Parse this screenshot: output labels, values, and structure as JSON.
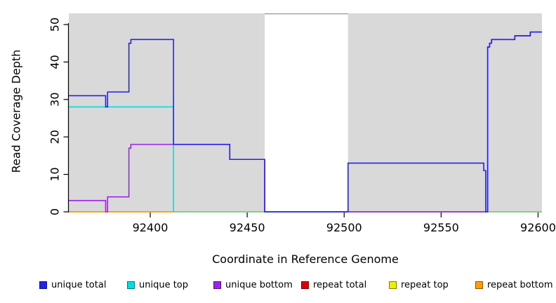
{
  "chart_data": {
    "type": "line",
    "subtype": "step-coverage",
    "title": "",
    "xlabel": "Coordinate in Reference Genome",
    "ylabel": "Read Coverage Depth",
    "xlim": [
      92358,
      92602
    ],
    "ylim": [
      0,
      53
    ],
    "x_ticks": [
      92400,
      92450,
      92500,
      92550,
      92600
    ],
    "y_ticks": [
      0,
      10,
      20,
      30,
      40,
      50
    ],
    "grid": false,
    "legend_position": "bottom",
    "plot_bg": "#FFFFFF",
    "region_fill": "#D9D9D9",
    "coverage_regions": [
      {
        "x1": 92358,
        "x2": 92459
      },
      {
        "x1": 92502,
        "x2": 92602
      }
    ],
    "uncovered_gap": {
      "x1": 92459,
      "x2": 92502,
      "top_line_color": "#9E9E9E"
    },
    "series": [
      {
        "name": "unique total",
        "color": "#2222EE",
        "points": [
          [
            92358,
            31
          ],
          [
            92377,
            31
          ],
          [
            92377,
            28
          ],
          [
            92378,
            28
          ],
          [
            92378,
            32
          ],
          [
            92389,
            32
          ],
          [
            92389,
            45
          ],
          [
            92390,
            45
          ],
          [
            92390,
            46
          ],
          [
            92412,
            46
          ],
          [
            92412,
            18
          ],
          [
            92441,
            18
          ],
          [
            92441,
            14
          ],
          [
            92459,
            14
          ],
          [
            92459,
            0
          ],
          [
            92502,
            0
          ],
          [
            92502,
            13
          ],
          [
            92572,
            13
          ],
          [
            92572,
            11
          ],
          [
            92573,
            11
          ],
          [
            92573,
            0
          ],
          [
            92574,
            0
          ],
          [
            92574,
            44
          ],
          [
            92575,
            44
          ],
          [
            92575,
            45
          ],
          [
            92576,
            45
          ],
          [
            92576,
            46
          ],
          [
            92588,
            46
          ],
          [
            92588,
            47
          ],
          [
            92596,
            47
          ],
          [
            92596,
            48
          ],
          [
            92602,
            48
          ]
        ]
      },
      {
        "name": "unique top",
        "color": "#00DDE0",
        "points": [
          [
            92358,
            28
          ],
          [
            92412,
            28
          ],
          [
            92412,
            0
          ],
          [
            92602,
            0
          ]
        ]
      },
      {
        "name": "unique bottom",
        "color": "#A020F0",
        "points": [
          [
            92358,
            3
          ],
          [
            92377,
            3
          ],
          [
            92377,
            0
          ],
          [
            92378,
            0
          ],
          [
            92378,
            4
          ],
          [
            92389,
            4
          ],
          [
            92389,
            17
          ],
          [
            92390,
            17
          ],
          [
            92390,
            18
          ],
          [
            92441,
            18
          ],
          [
            92441,
            14
          ],
          [
            92459,
            14
          ],
          [
            92459,
            0
          ],
          [
            92574,
            0
          ],
          [
            92574,
            44
          ],
          [
            92575,
            44
          ],
          [
            92575,
            45
          ],
          [
            92576,
            45
          ],
          [
            92576,
            46
          ],
          [
            92588,
            46
          ],
          [
            92588,
            47
          ],
          [
            92596,
            47
          ],
          [
            92596,
            48
          ],
          [
            92602,
            48
          ]
        ]
      },
      {
        "name": "repeat total",
        "color": "#DD0000",
        "points": [
          [
            92358,
            0
          ],
          [
            92602,
            0
          ]
        ]
      },
      {
        "name": "repeat top",
        "color": "#EEEE00",
        "points": [
          [
            92358,
            0
          ],
          [
            92602,
            0
          ]
        ]
      },
      {
        "name": "repeat bottom",
        "color": "#FF9F00",
        "points": [
          [
            92358,
            0
          ],
          [
            92602,
            0
          ]
        ]
      }
    ],
    "draw_order": {
      "below_overlays": [
        3,
        4,
        5,
        1
      ],
      "above_overlays": [
        2,
        0
      ]
    },
    "zero_line_blend_segments": [
      {
        "x1": 92412,
        "x2": 92459,
        "color": "#8FCD8F"
      },
      {
        "x1": 92502,
        "x2": 92572,
        "color": "#C96A87"
      },
      {
        "x1": 92574,
        "x2": 92602,
        "color": "#8FCD8F"
      }
    ],
    "legend": [
      {
        "label": "unique total",
        "color": "#2222EE"
      },
      {
        "label": "unique top",
        "color": "#00DDE0"
      },
      {
        "label": "unique bottom",
        "color": "#A020F0"
      },
      {
        "label": "repeat total",
        "color": "#DD0000"
      },
      {
        "label": "repeat top",
        "color": "#EEEE00"
      },
      {
        "label": "repeat bottom",
        "color": "#FF9F00"
      }
    ]
  }
}
